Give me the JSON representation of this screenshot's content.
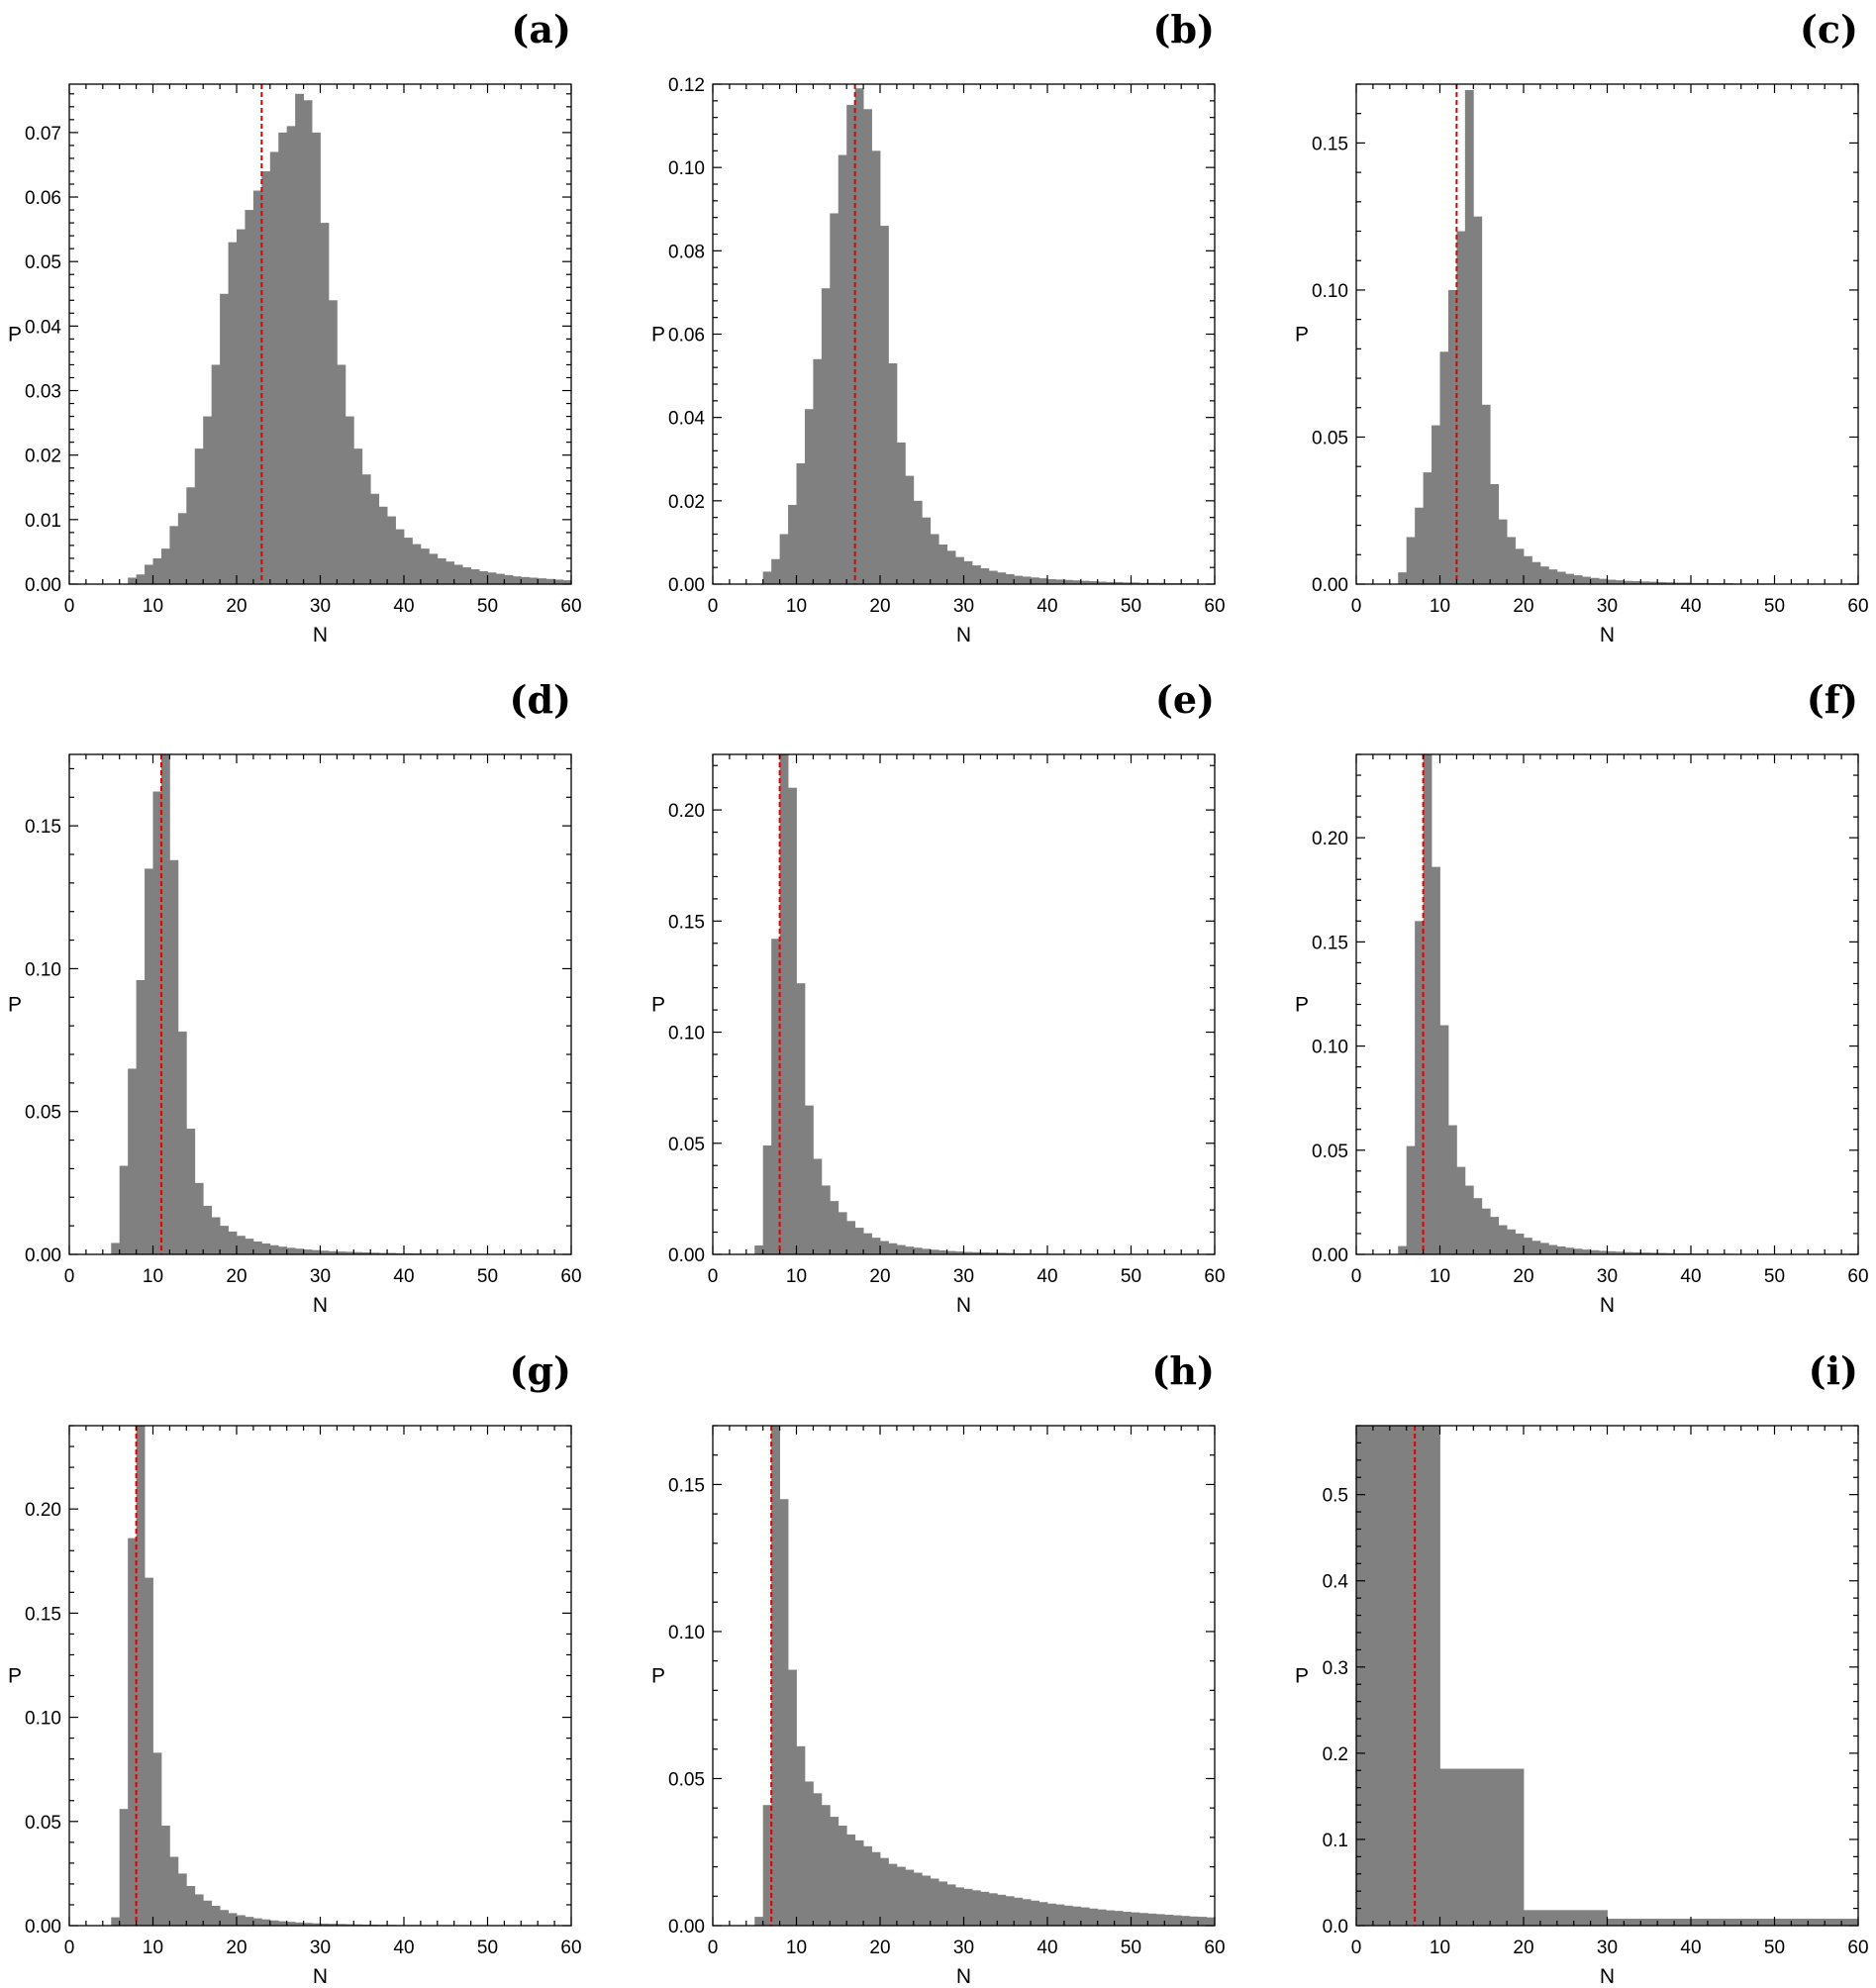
{
  "chart_data": [
    {
      "panel": "(a)",
      "type": "bar",
      "xlabel": "N",
      "ylabel": "P",
      "xlim": [
        0,
        60
      ],
      "ylim": [
        0,
        0.0775
      ],
      "bin_width": 1,
      "bins_start": 7,
      "yticks": [
        "0.00",
        "0.01",
        "0.02",
        "0.03",
        "0.04",
        "0.05",
        "0.06",
        "0.07"
      ],
      "ytick_values": [
        0,
        0.01,
        0.02,
        0.03,
        0.04,
        0.05,
        0.06,
        0.07
      ],
      "xticks": [
        "0",
        "10",
        "20",
        "30",
        "40",
        "50",
        "60"
      ],
      "median": 23,
      "values": [
        0.001,
        0.0015,
        0.003,
        0.004,
        0.0055,
        0.009,
        0.011,
        0.015,
        0.021,
        0.026,
        0.034,
        0.045,
        0.053,
        0.055,
        0.058,
        0.061,
        0.064,
        0.067,
        0.07,
        0.071,
        0.076,
        0.075,
        0.07,
        0.056,
        0.044,
        0.034,
        0.026,
        0.021,
        0.017,
        0.014,
        0.012,
        0.0105,
        0.0085,
        0.0072,
        0.0062,
        0.0055,
        0.0047,
        0.004,
        0.0035,
        0.003,
        0.0026,
        0.0023,
        0.002,
        0.0018,
        0.0016,
        0.0014,
        0.0012,
        0.0011,
        0.001,
        0.0009,
        0.0008,
        0.0007,
        0.0006
      ]
    },
    {
      "panel": "(b)",
      "type": "bar",
      "xlabel": "N",
      "ylabel": "P",
      "xlim": [
        0,
        60
      ],
      "ylim": [
        0,
        0.12
      ],
      "bin_width": 1,
      "bins_start": 6,
      "yticks": [
        "0.00",
        "0.02",
        "0.04",
        "0.06",
        "0.08",
        "0.10",
        "0.12"
      ],
      "ytick_values": [
        0,
        0.02,
        0.04,
        0.06,
        0.08,
        0.1,
        0.12
      ],
      "xticks": [
        "0",
        "10",
        "20",
        "30",
        "40",
        "50",
        "60"
      ],
      "median": 17,
      "values": [
        0.003,
        0.006,
        0.012,
        0.019,
        0.029,
        0.042,
        0.054,
        0.071,
        0.089,
        0.103,
        0.115,
        0.119,
        0.114,
        0.104,
        0.086,
        0.053,
        0.034,
        0.026,
        0.02,
        0.016,
        0.012,
        0.0095,
        0.008,
        0.0065,
        0.0055,
        0.0045,
        0.0038,
        0.0032,
        0.0028,
        0.0024,
        0.002,
        0.0018,
        0.0016,
        0.0014,
        0.0012,
        0.0011,
        0.001,
        0.0009,
        0.0008,
        0.0007,
        0.0006,
        0.0005,
        0.0005,
        0.0004,
        0.0004,
        0.0003,
        0.0003,
        0.0003,
        0.0002,
        0.0002,
        0.0002,
        0.0002,
        0.0001,
        0.0001
      ]
    },
    {
      "panel": "(c)",
      "type": "bar",
      "xlabel": "N",
      "ylabel": "P",
      "xlim": [
        0,
        60
      ],
      "ylim": [
        0,
        0.17
      ],
      "bin_width": 1,
      "bins_start": 5,
      "yticks": [
        "0.00",
        "0.05",
        "0.10",
        "0.15"
      ],
      "ytick_values": [
        0,
        0.05,
        0.1,
        0.15
      ],
      "xticks": [
        "0",
        "10",
        "20",
        "30",
        "40",
        "50",
        "60"
      ],
      "median": 12,
      "values": [
        0.004,
        0.016,
        0.026,
        0.038,
        0.054,
        0.079,
        0.1,
        0.12,
        0.168,
        0.125,
        0.061,
        0.034,
        0.022,
        0.016,
        0.012,
        0.0095,
        0.0075,
        0.006,
        0.005,
        0.0042,
        0.0035,
        0.003,
        0.0025,
        0.0021,
        0.0018,
        0.0015,
        0.0013,
        0.0011,
        0.001,
        0.0009,
        0.0008,
        0.0007,
        0.0006,
        0.0005,
        0.0005,
        0.0004,
        0.0004,
        0.0003,
        0.0003,
        0.0003,
        0.0002,
        0.0002,
        0.0002,
        0.0002,
        0.0002,
        0.0001,
        0.0001,
        0.0001,
        0.0001,
        0.0001,
        0.0001,
        0.0001,
        0.0001,
        0.0001,
        0.0001
      ]
    },
    {
      "panel": "(d)",
      "type": "bar",
      "xlabel": "N",
      "ylabel": "P",
      "xlim": [
        0,
        60
      ],
      "ylim": [
        0,
        0.175
      ],
      "bin_width": 1,
      "bins_start": 5,
      "yticks": [
        "0.00",
        "0.05",
        "0.10",
        "0.15"
      ],
      "ytick_values": [
        0,
        0.05,
        0.1,
        0.15
      ],
      "xticks": [
        "0",
        "10",
        "20",
        "30",
        "40",
        "50",
        "60"
      ],
      "median": 11,
      "values": [
        0.004,
        0.031,
        0.065,
        0.096,
        0.135,
        0.162,
        0.175,
        0.138,
        0.078,
        0.044,
        0.025,
        0.017,
        0.013,
        0.01,
        0.008,
        0.0065,
        0.0055,
        0.0045,
        0.0038,
        0.0032,
        0.0027,
        0.0023,
        0.002,
        0.0017,
        0.0015,
        0.0013,
        0.0011,
        0.001,
        0.0009,
        0.0008,
        0.0007,
        0.0006,
        0.0005,
        0.0005,
        0.0004,
        0.0004,
        0.0003,
        0.0003,
        0.0003,
        0.0002,
        0.0002,
        0.0002,
        0.0002,
        0.0002,
        0.0001,
        0.0001,
        0.0001,
        0.0001,
        0.0001,
        0.0001,
        0.0001,
        0.0001,
        0.0001,
        0.0001,
        0.0001
      ]
    },
    {
      "panel": "(e)",
      "type": "bar",
      "xlabel": "N",
      "ylabel": "P",
      "xlim": [
        0,
        60
      ],
      "ylim": [
        0,
        0.225
      ],
      "bin_width": 1,
      "bins_start": 5,
      "yticks": [
        "0.00",
        "0.05",
        "0.10",
        "0.15",
        "0.20"
      ],
      "ytick_values": [
        0,
        0.05,
        0.1,
        0.15,
        0.2
      ],
      "xticks": [
        "0",
        "10",
        "20",
        "30",
        "40",
        "50",
        "60"
      ],
      "median": 8,
      "values": [
        0.004,
        0.049,
        0.142,
        0.225,
        0.21,
        0.122,
        0.067,
        0.043,
        0.031,
        0.024,
        0.019,
        0.015,
        0.012,
        0.0095,
        0.0075,
        0.006,
        0.005,
        0.0042,
        0.0035,
        0.003,
        0.0025,
        0.0021,
        0.0018,
        0.0015,
        0.0013,
        0.0011,
        0.001,
        0.0009,
        0.0008,
        0.0007,
        0.0006,
        0.0005,
        0.0005,
        0.0004,
        0.0004,
        0.0003,
        0.0003,
        0.0003,
        0.0002,
        0.0002,
        0.0002,
        0.0002,
        0.0002,
        0.0001,
        0.0001,
        0.0001,
        0.0001,
        0.0001,
        0.0001,
        0.0001,
        0.0001,
        0.0001,
        0.0001,
        0.0001,
        0.0001
      ]
    },
    {
      "panel": "(f)",
      "type": "bar",
      "xlabel": "N",
      "ylabel": "P",
      "xlim": [
        0,
        60
      ],
      "ylim": [
        0,
        0.24
      ],
      "bin_width": 1,
      "bins_start": 5,
      "yticks": [
        "0.00",
        "0.05",
        "0.10",
        "0.15",
        "0.20"
      ],
      "ytick_values": [
        0,
        0.05,
        0.1,
        0.15,
        0.2
      ],
      "xticks": [
        "0",
        "10",
        "20",
        "30",
        "40",
        "50",
        "60"
      ],
      "median": 8,
      "values": [
        0.004,
        0.052,
        0.16,
        0.24,
        0.186,
        0.11,
        0.062,
        0.042,
        0.033,
        0.027,
        0.022,
        0.018,
        0.014,
        0.012,
        0.01,
        0.008,
        0.0065,
        0.0055,
        0.0045,
        0.0038,
        0.0032,
        0.0027,
        0.0023,
        0.002,
        0.0017,
        0.0015,
        0.0013,
        0.0011,
        0.001,
        0.0009,
        0.0008,
        0.0007,
        0.0006,
        0.0005,
        0.0005,
        0.0004,
        0.0004,
        0.0003,
        0.0003,
        0.0003,
        0.0002,
        0.0002,
        0.0002,
        0.0002,
        0.0002,
        0.0001,
        0.0001,
        0.0001,
        0.0001,
        0.0001,
        0.0001,
        0.0001,
        0.0001,
        0.0001,
        0.0001
      ]
    },
    {
      "panel": "(g)",
      "type": "bar",
      "xlabel": "N",
      "ylabel": "P",
      "xlim": [
        0,
        60
      ],
      "ylim": [
        0,
        0.24
      ],
      "bin_width": 1,
      "bins_start": 5,
      "yticks": [
        "0.00",
        "0.05",
        "0.10",
        "0.15",
        "0.20"
      ],
      "ytick_values": [
        0,
        0.05,
        0.1,
        0.15,
        0.2
      ],
      "xticks": [
        "0",
        "10",
        "20",
        "30",
        "40",
        "50",
        "60"
      ],
      "median": 8,
      "values": [
        0.004,
        0.056,
        0.186,
        0.24,
        0.167,
        0.083,
        0.048,
        0.033,
        0.025,
        0.019,
        0.015,
        0.012,
        0.0095,
        0.0075,
        0.006,
        0.005,
        0.0042,
        0.0035,
        0.003,
        0.0025,
        0.0021,
        0.0018,
        0.0015,
        0.0013,
        0.0011,
        0.001,
        0.0009,
        0.0008,
        0.0007,
        0.0006,
        0.0005,
        0.0005,
        0.0004,
        0.0004,
        0.0003,
        0.0003,
        0.0003,
        0.0002,
        0.0002,
        0.0002,
        0.0002,
        0.0002,
        0.0001,
        0.0001,
        0.0001,
        0.0001,
        0.0001,
        0.0001,
        0.0001,
        0.0001,
        0.0001,
        0.0001,
        0.0001,
        0.0001,
        0.0001
      ]
    },
    {
      "panel": "(h)",
      "type": "bar",
      "xlabel": "N",
      "ylabel": "P",
      "xlim": [
        0,
        60
      ],
      "ylim": [
        0,
        0.17
      ],
      "bin_width": 1,
      "bins_start": 5,
      "yticks": [
        "0.00",
        "0.05",
        "0.10",
        "0.15"
      ],
      "ytick_values": [
        0,
        0.05,
        0.1,
        0.15
      ],
      "xticks": [
        "0",
        "10",
        "20",
        "30",
        "40",
        "50",
        "60"
      ],
      "median": 7,
      "values": [
        0.003,
        0.041,
        0.17,
        0.145,
        0.087,
        0.061,
        0.049,
        0.045,
        0.041,
        0.037,
        0.034,
        0.031,
        0.029,
        0.027,
        0.025,
        0.023,
        0.021,
        0.02,
        0.019,
        0.018,
        0.017,
        0.016,
        0.015,
        0.014,
        0.013,
        0.0125,
        0.012,
        0.0115,
        0.011,
        0.0105,
        0.01,
        0.0095,
        0.009,
        0.0085,
        0.008,
        0.0075,
        0.0072,
        0.0068,
        0.0065,
        0.0062,
        0.0058,
        0.0055,
        0.0052,
        0.005,
        0.0047,
        0.0045,
        0.0043,
        0.0041,
        0.0039,
        0.0037,
        0.0035,
        0.0033,
        0.0031,
        0.003,
        0.0028
      ]
    },
    {
      "panel": "(i)",
      "type": "bar",
      "xlabel": "N",
      "ylabel": "P",
      "xlim": [
        0,
        60
      ],
      "ylim": [
        0,
        0.58
      ],
      "bin_width": 10,
      "bins_start": 0,
      "yticks": [
        "0.0",
        "0.1",
        "0.2",
        "0.3",
        "0.4",
        "0.5"
      ],
      "ytick_values": [
        0,
        0.1,
        0.2,
        0.3,
        0.4,
        0.5
      ],
      "xticks": [
        "0",
        "10",
        "20",
        "30",
        "40",
        "50",
        "60"
      ],
      "median": 7,
      "values": [
        0.58,
        0.182,
        0.018,
        0.008,
        0.008,
        0.008
      ]
    }
  ]
}
